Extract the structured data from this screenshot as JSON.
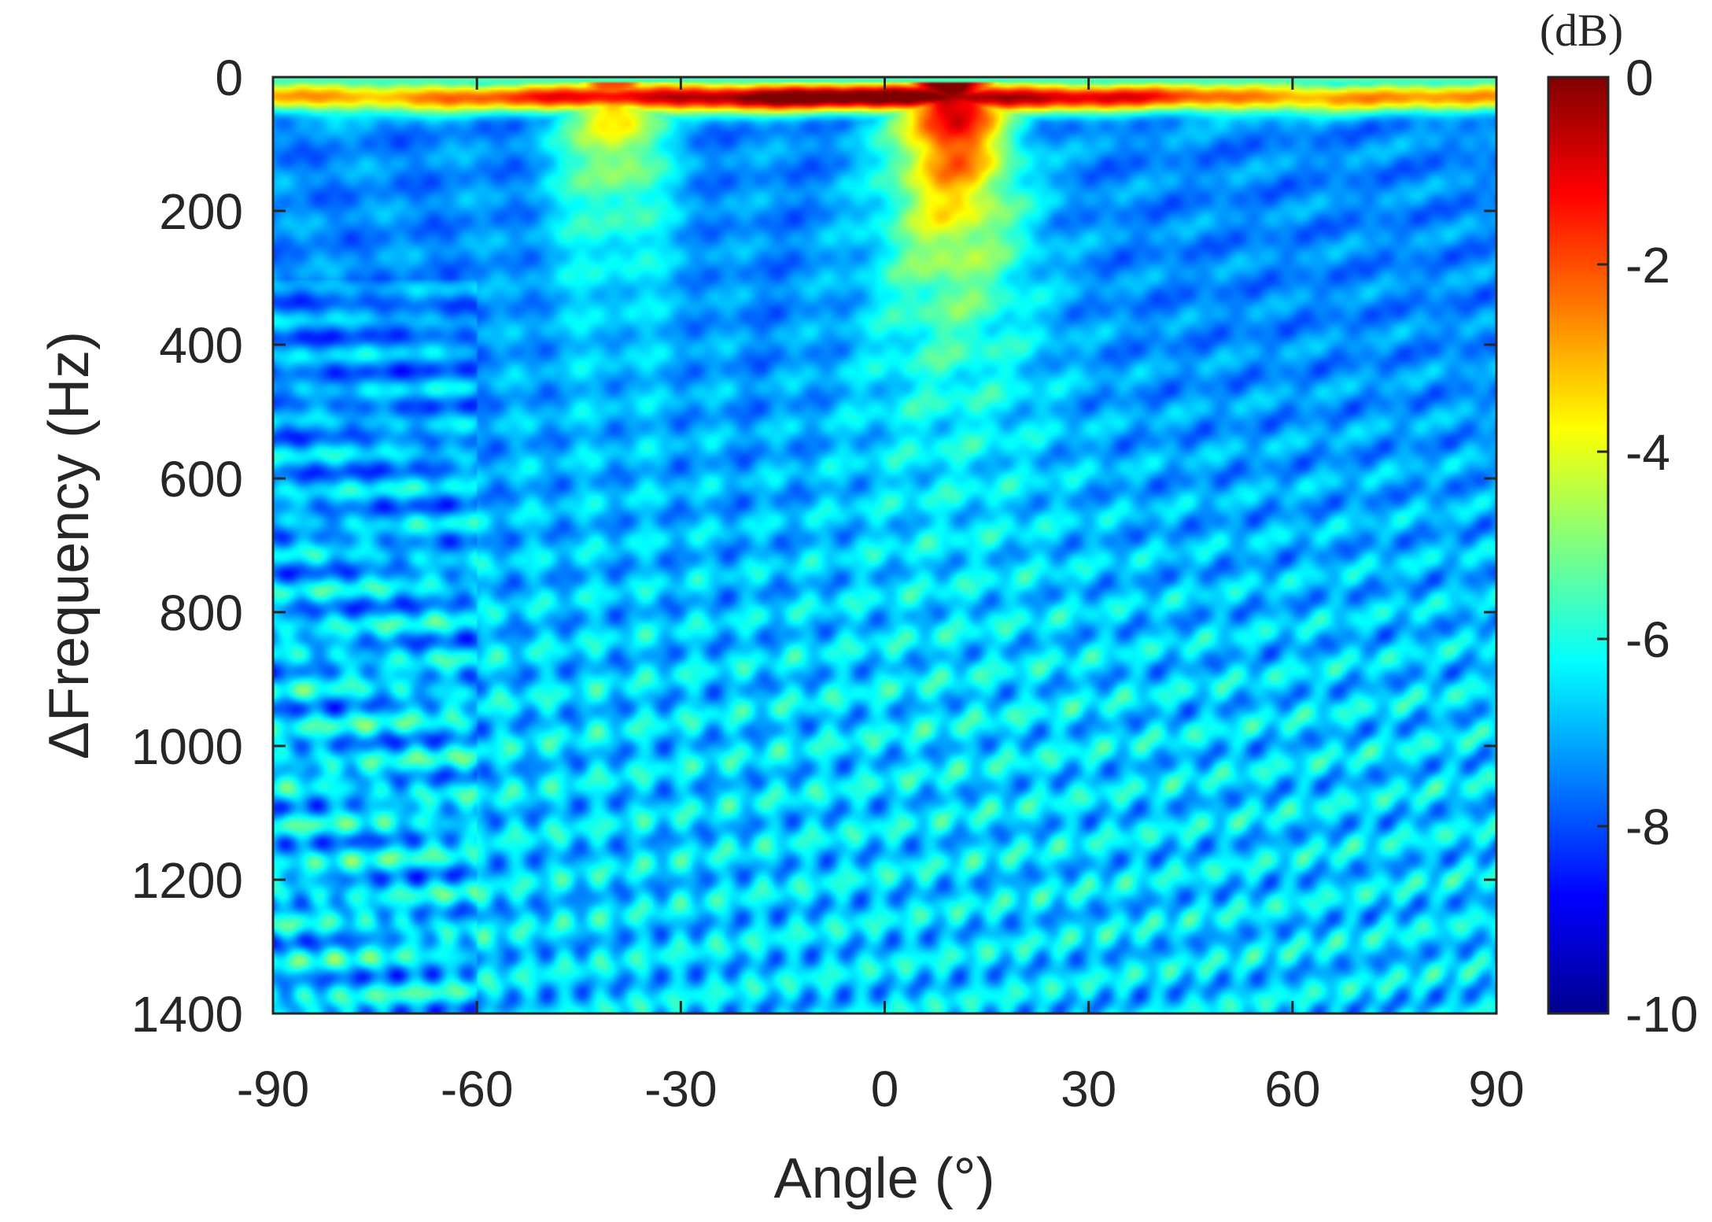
{
  "chart_data": {
    "type": "heatmap",
    "title": "",
    "xlabel": "Angle (°)",
    "ylabel": "ΔFrequency (Hz)",
    "xlim": [
      -90,
      90
    ],
    "ylim": [
      0,
      1400
    ],
    "y_reversed": true,
    "x_ticks": [
      -90,
      -60,
      -30,
      0,
      30,
      60,
      90
    ],
    "x_tick_labels": [
      "-90",
      "-60",
      "-30",
      "0",
      "30",
      "60",
      "90"
    ],
    "y_ticks": [
      0,
      200,
      400,
      600,
      800,
      1000,
      1200,
      1400
    ],
    "y_tick_labels": [
      "0",
      "200",
      "400",
      "600",
      "800",
      "1000",
      "1200",
      "1400"
    ],
    "colorbar": {
      "label": "(dB)",
      "range": [
        -10,
        0
      ],
      "ticks": [
        0,
        -2,
        -4,
        -6,
        -8,
        -10
      ],
      "tick_labels": [
        "0",
        "-2",
        "-4",
        "-6",
        "-8",
        "-10"
      ],
      "colormap": "jet"
    },
    "grid": false,
    "features": [
      {
        "description": "main beam peak",
        "angle": 10,
        "dfreq_range": [
          20,
          350
        ],
        "level_db": 0
      },
      {
        "description": "secondary beam peak",
        "angle": -38,
        "dfreq_range": [
          20,
          500
        ],
        "level_db": -2
      },
      {
        "description": "fan of interference lobes",
        "angle_range": [
          -90,
          90
        ],
        "dfreq_range": [
          400,
          1400
        ],
        "level_db": -6
      }
    ]
  }
}
